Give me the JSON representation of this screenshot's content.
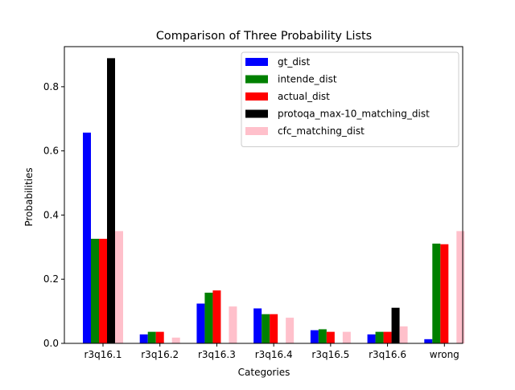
{
  "chart_data": {
    "type": "bar",
    "title": "Comparison of Three Probability Lists",
    "xlabel": "Categories",
    "ylabel": "Probabilities",
    "ylim": [
      0,
      0.925
    ],
    "yticks": [
      0.0,
      0.2,
      0.4,
      0.6,
      0.8
    ],
    "ytick_labels": [
      "0.0",
      "0.2",
      "0.4",
      "0.6",
      "0.8"
    ],
    "grid": false,
    "legend_position": "top-right",
    "categories": [
      "r3q16.1",
      "r3q16.2",
      "r3q16.3",
      "r3q16.4",
      "r3q16.5",
      "r3q16.6",
      "wrong"
    ],
    "series": [
      {
        "name": "gt_dist",
        "color": "#0000ff",
        "values": [
          0.657,
          0.028,
          0.124,
          0.109,
          0.041,
          0.028,
          0.013
        ]
      },
      {
        "name": "intende_dist",
        "color": "#008000",
        "values": [
          0.326,
          0.036,
          0.158,
          0.091,
          0.044,
          0.036,
          0.311
        ]
      },
      {
        "name": "actual_dist",
        "color": "#ff0000",
        "values": [
          0.326,
          0.036,
          0.165,
          0.091,
          0.036,
          0.036,
          0.309
        ]
      },
      {
        "name": "protoqa_max-10_matching_dist",
        "color": "#000000",
        "values": [
          0.889,
          0.0,
          0.0,
          0.0,
          0.0,
          0.111,
          0.0
        ]
      },
      {
        "name": "cfc_matching_dist",
        "color": "#ffc0cb",
        "values": [
          0.35,
          0.018,
          0.115,
          0.08,
          0.036,
          0.053,
          0.35
        ]
      }
    ]
  }
}
